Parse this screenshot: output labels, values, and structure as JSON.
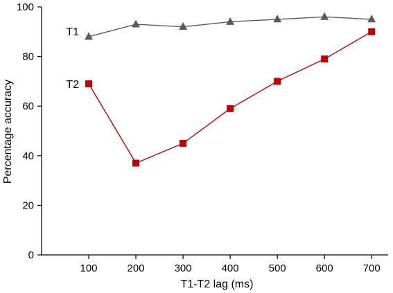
{
  "chart_data": {
    "type": "line",
    "xlabel": "T1-T2 lag (ms)",
    "ylabel": "Percentage accuracy",
    "x": [
      100,
      200,
      300,
      400,
      500,
      600,
      700
    ],
    "xticks": [
      100,
      200,
      300,
      400,
      500,
      600,
      700
    ],
    "xlim": [
      0,
      735
    ],
    "ylim": [
      0,
      100
    ],
    "yticks": [
      0,
      20,
      40,
      60,
      80,
      100
    ],
    "grid": false,
    "legend": "none",
    "series": [
      {
        "name": "T1",
        "values": [
          88,
          93,
          92,
          94,
          95,
          96,
          95
        ],
        "marker": "triangle",
        "color": "#5a5a5a"
      },
      {
        "name": "T2",
        "values": [
          69,
          37,
          45,
          59,
          70,
          79,
          90
        ],
        "marker": "square",
        "color": "#c00000"
      }
    ]
  }
}
